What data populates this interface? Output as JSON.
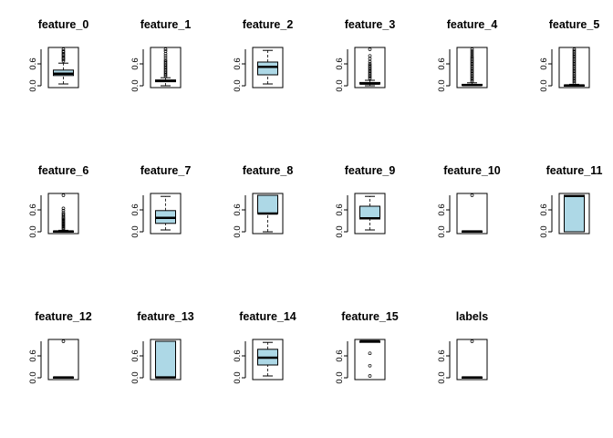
{
  "chart_data": {
    "type": "boxplot",
    "layout": "grid of 17 boxplots, 6 per row",
    "ylim": [
      0,
      1
    ],
    "yticks": [
      0.0,
      0.6
    ],
    "ytick_labels": [
      "0.0",
      "0.6"
    ],
    "box_fill": "#add8e6",
    "panels": [
      {
        "name": "feature_0",
        "min": 0.05,
        "q1": 0.28,
        "median": 0.33,
        "q3": 0.43,
        "max": 0.62,
        "outliers": [
          0.68,
          0.72,
          0.75,
          0.78,
          0.82,
          0.85,
          0.88,
          0.92,
          0.95,
          1.0
        ]
      },
      {
        "name": "feature_1",
        "min": 0.0,
        "q1": 0.11,
        "median": 0.13,
        "q3": 0.16,
        "max": 0.22,
        "outliers": [
          0.26,
          0.3,
          0.34,
          0.38,
          0.42,
          0.46,
          0.5,
          0.54,
          0.58,
          0.62,
          0.66,
          0.7,
          0.76,
          0.82,
          0.88,
          0.95,
          1.0
        ]
      },
      {
        "name": "feature_2",
        "min": 0.05,
        "q1": 0.3,
        "median": 0.52,
        "q3": 0.65,
        "max": 0.97,
        "outliers": []
      },
      {
        "name": "feature_3",
        "min": 0.0,
        "q1": 0.05,
        "median": 0.06,
        "q3": 0.09,
        "max": 0.15,
        "outliers": [
          0.2,
          0.24,
          0.28,
          0.32,
          0.36,
          0.4,
          0.44,
          0.48,
          0.52,
          0.56,
          0.6,
          0.66,
          0.74,
          0.82,
          1.0
        ]
      },
      {
        "name": "feature_4",
        "min": 0.0,
        "q1": 0.01,
        "median": 0.02,
        "q3": 0.04,
        "max": 0.08,
        "outliers": [
          0.12,
          0.16,
          0.2,
          0.24,
          0.28,
          0.32,
          0.36,
          0.4,
          0.44,
          0.48,
          0.52,
          0.56,
          0.6,
          0.64,
          0.68,
          0.72,
          0.76,
          0.8,
          0.85,
          0.9,
          0.95,
          1.0
        ]
      },
      {
        "name": "feature_5",
        "min": 0.0,
        "q1": 0.0,
        "median": 0.01,
        "q3": 0.02,
        "max": 0.04,
        "outliers": [
          0.08,
          0.12,
          0.16,
          0.2,
          0.24,
          0.28,
          0.32,
          0.36,
          0.4,
          0.44,
          0.48,
          0.52,
          0.56,
          0.6,
          0.64,
          0.68,
          0.72,
          0.76,
          0.8,
          0.84,
          0.88,
          0.92,
          0.96,
          1.0
        ]
      },
      {
        "name": "feature_6",
        "min": 0.0,
        "q1": 0.0,
        "median": 0.01,
        "q3": 0.02,
        "max": 0.04,
        "outliers": [
          0.07,
          0.1,
          0.13,
          0.16,
          0.19,
          0.22,
          0.25,
          0.28,
          0.31,
          0.34,
          0.37,
          0.4,
          0.44,
          0.48,
          0.52,
          0.58,
          0.64,
          1.0
        ]
      },
      {
        "name": "feature_7",
        "min": 0.05,
        "q1": 0.23,
        "median": 0.38,
        "q3": 0.58,
        "max": 0.97,
        "outliers": []
      },
      {
        "name": "feature_8",
        "min": 0.0,
        "q1": 0.5,
        "median": 0.5,
        "q3": 1.0,
        "max": 1.0,
        "outliers": []
      },
      {
        "name": "feature_9",
        "min": 0.05,
        "q1": 0.35,
        "median": 0.37,
        "q3": 0.7,
        "max": 0.97,
        "outliers": []
      },
      {
        "name": "feature_10",
        "min": 0.0,
        "q1": 0.0,
        "median": 0.01,
        "q3": 0.02,
        "max": 0.02,
        "outliers": [
          1.0
        ]
      },
      {
        "name": "feature_11",
        "min": 0.0,
        "q1": 0.0,
        "median": 0.98,
        "q3": 1.0,
        "max": 1.0,
        "outliers": []
      },
      {
        "name": "feature_12",
        "min": 0.0,
        "q1": 0.0,
        "median": 0.01,
        "q3": 0.02,
        "max": 0.02,
        "outliers": [
          1.0
        ]
      },
      {
        "name": "feature_13",
        "min": 0.0,
        "q1": 0.0,
        "median": 0.01,
        "q3": 1.0,
        "max": 1.0,
        "outliers": []
      },
      {
        "name": "feature_14",
        "min": 0.05,
        "q1": 0.35,
        "median": 0.55,
        "q3": 0.78,
        "max": 0.97,
        "outliers": []
      },
      {
        "name": "feature_15",
        "min": 1.0,
        "q1": 1.0,
        "median": 1.0,
        "q3": 1.0,
        "max": 1.0,
        "outliers": [
          0.05,
          0.33,
          0.67
        ]
      },
      {
        "name": "labels",
        "min": 0.0,
        "q1": 0.0,
        "median": 0.01,
        "q3": 0.02,
        "max": 0.02,
        "outliers": [
          1.0
        ]
      }
    ]
  }
}
